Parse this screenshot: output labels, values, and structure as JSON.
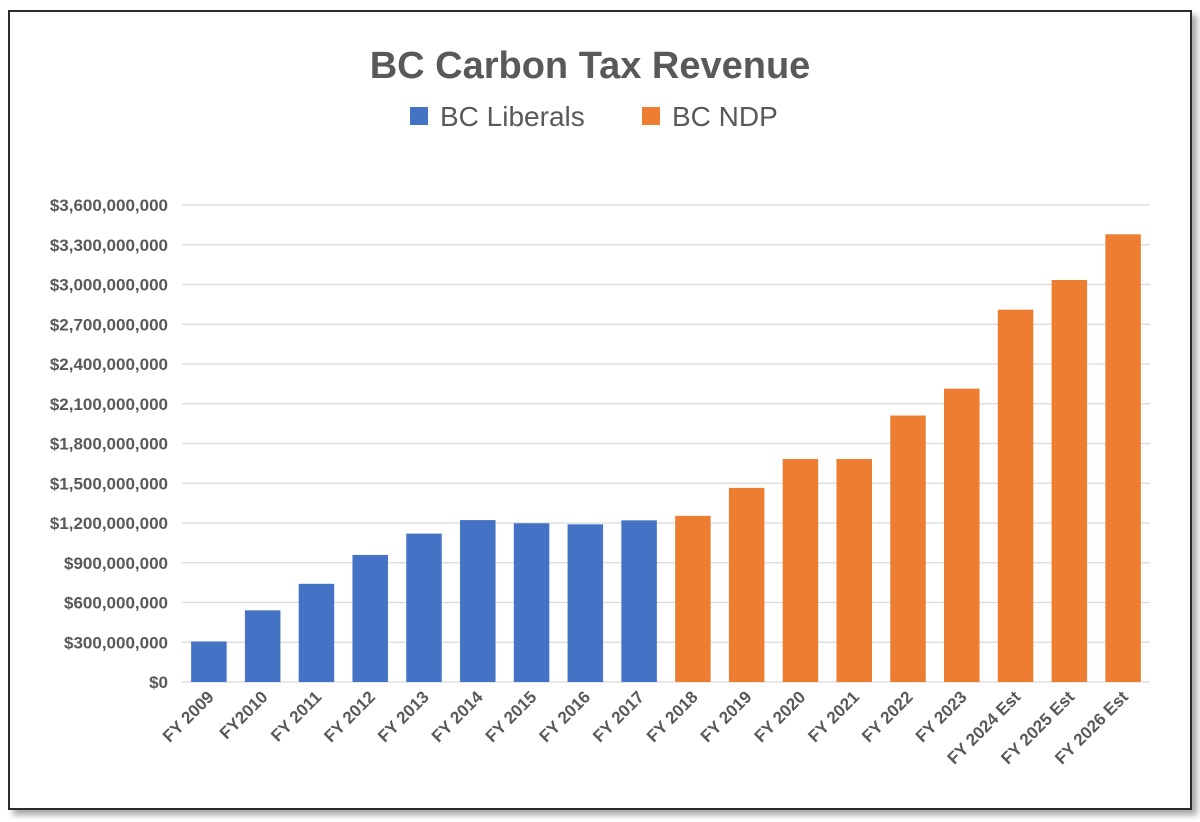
{
  "chart_data": {
    "type": "bar",
    "title": "BC Carbon Tax Revenue",
    "xlabel": "",
    "ylabel": "",
    "ylim": [
      0,
      3600000000
    ],
    "yticks": [
      "$0",
      "$300,000,000",
      "$600,000,000",
      "$900,000,000",
      "$1,200,000,000",
      "$1,500,000,000",
      "$1,800,000,000",
      "$2,100,000,000",
      "$2,400,000,000",
      "$2,700,000,000",
      "$3,000,000,000",
      "$3,300,000,000",
      "$3,600,000,000"
    ],
    "ytick_values": [
      0,
      300000000,
      600000000,
      900000000,
      1200000000,
      1500000000,
      1800000000,
      2100000000,
      2400000000,
      2700000000,
      3000000000,
      3300000000,
      3600000000
    ],
    "grid": true,
    "legend_position": "top",
    "categories": [
      "FY 2009",
      "FY2010",
      "FY 2011",
      "FY 2012",
      "FY 2013",
      "FY 2014",
      "FY 2015",
      "FY 2016",
      "FY 2017",
      "FY 2018",
      "FY 2019",
      "FY 2020",
      "FY 2021",
      "FY 2022",
      "FY 2023",
      "FY 2024 Est",
      "FY 2025 Est",
      "FY 2026 Est"
    ],
    "series": [
      {
        "name": "BC Liberals",
        "color": "#4472c4",
        "values": [
          306000000,
          541000000,
          741000000,
          959000000,
          1120000000,
          1222000000,
          1198000000,
          1190000000,
          1220000000,
          null,
          null,
          null,
          null,
          null,
          null,
          null,
          null,
          null
        ]
      },
      {
        "name": "BC NDP",
        "color": "#ed7d31",
        "values": [
          null,
          null,
          null,
          null,
          null,
          null,
          null,
          null,
          null,
          1254000000,
          1465000000,
          1683000000,
          1683000000,
          2011000000,
          2214000000,
          2810000000,
          3034000000,
          3379000000
        ]
      }
    ]
  }
}
